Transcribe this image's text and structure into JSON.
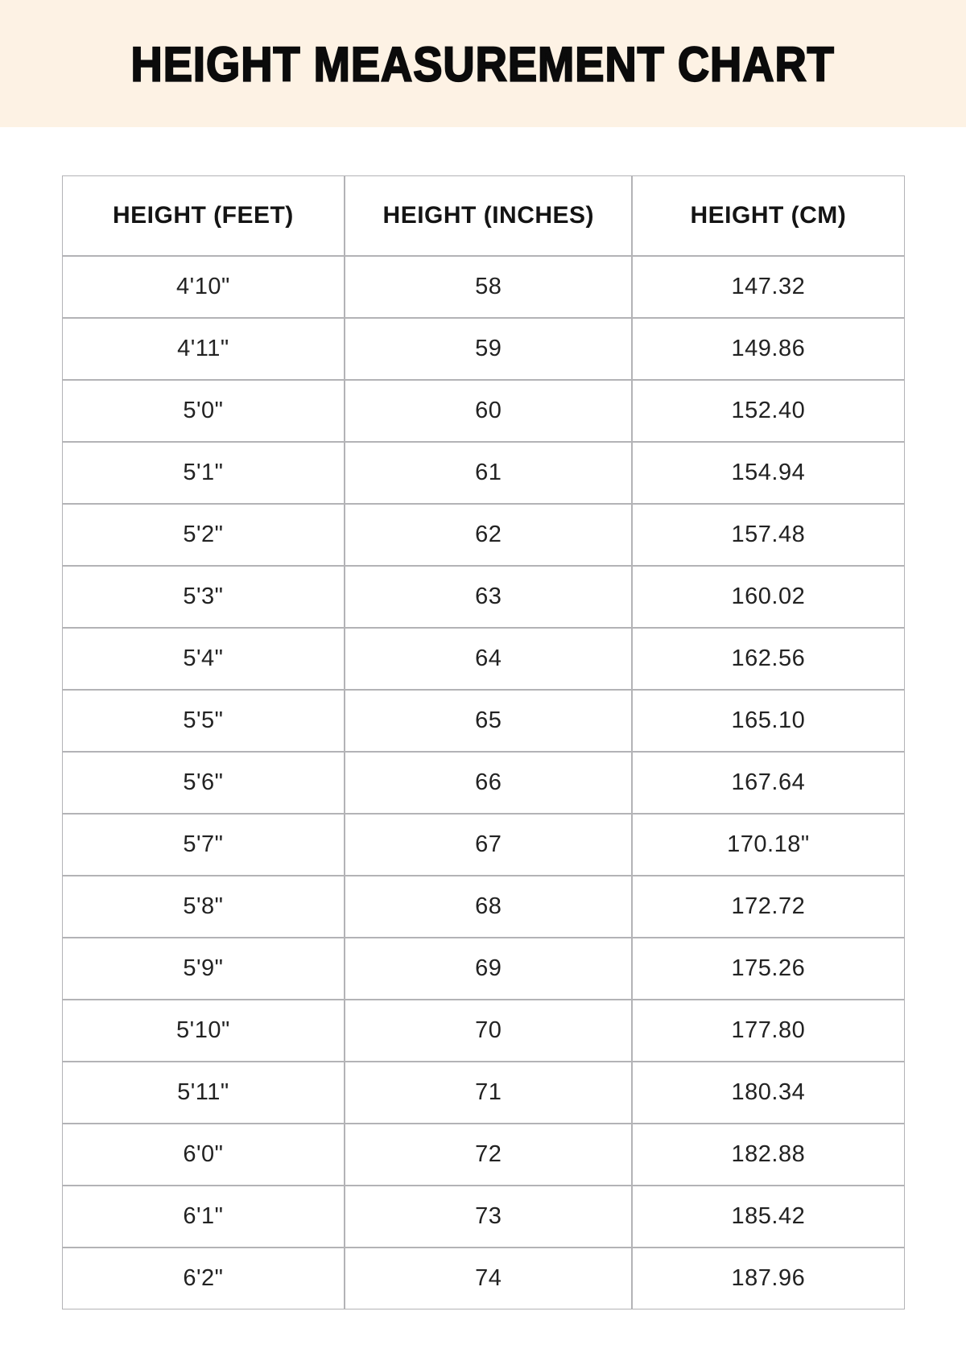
{
  "header": {
    "title": "HEIGHT MEASUREMENT CHART"
  },
  "chart_data": {
    "type": "table",
    "title": "HEIGHT MEASUREMENT CHART",
    "columns": [
      "HEIGHT (FEET)",
      "HEIGHT (INCHES)",
      "HEIGHT (CM)"
    ],
    "rows": [
      [
        "4'10\"",
        "58",
        "147.32"
      ],
      [
        "4'11\"",
        "59",
        "149.86"
      ],
      [
        "5'0\"",
        "60",
        "152.40"
      ],
      [
        "5'1\"",
        "61",
        "154.94"
      ],
      [
        "5'2\"",
        "62",
        "157.48"
      ],
      [
        "5'3\"",
        "63",
        "160.02"
      ],
      [
        "5'4\"",
        "64",
        "162.56"
      ],
      [
        "5'5\"",
        "65",
        "165.10"
      ],
      [
        "5'6\"",
        "66",
        "167.64"
      ],
      [
        "5'7\"",
        "67",
        "170.18\""
      ],
      [
        "5'8\"",
        "68",
        "172.72"
      ],
      [
        "5'9\"",
        "69",
        "175.26"
      ],
      [
        "5'10\"",
        "70",
        "177.80"
      ],
      [
        "5'11\"",
        "71",
        "180.34"
      ],
      [
        "6'0\"",
        "72",
        "182.88"
      ],
      [
        "6'1\"",
        "73",
        "185.42"
      ],
      [
        "6'2\"",
        "74",
        "187.96"
      ]
    ]
  },
  "colors": {
    "banner_background": "#fdf2e4",
    "table_border": "#b3b3b6",
    "title_text": "#0b0b0b"
  }
}
